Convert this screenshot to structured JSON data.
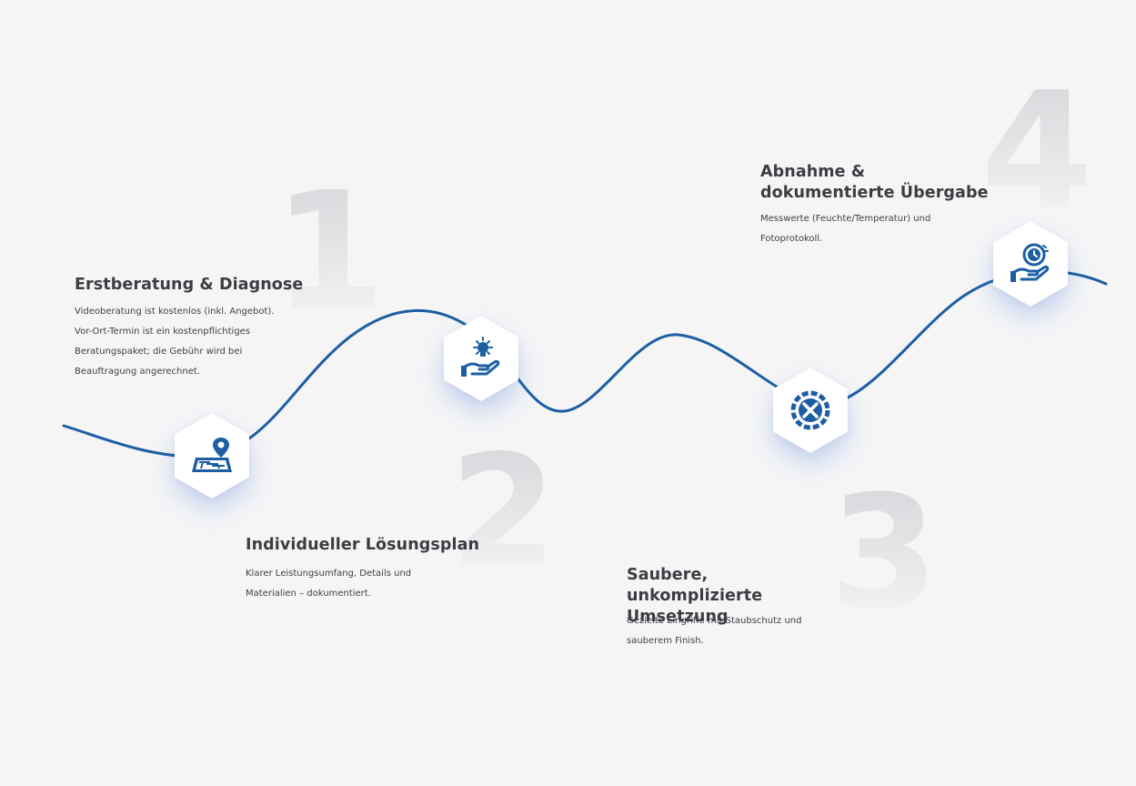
{
  "colors": {
    "background": "#f5f5f6",
    "accent": "#1d5ea3",
    "text": "#3b3d42",
    "number": "#dcdde0"
  },
  "steps": [
    {
      "number": "1",
      "title": "Erstberatung & Diagnose",
      "description": "Videoberatung ist kostenlos (inkl. Angebot). Vor-Ort-Termin ist ein kostenpflichtiges Beratungspaket; die Gebühr wird bei Beauftragung angerechnet.",
      "icon": "map-location-icon"
    },
    {
      "number": "2",
      "title": "Individueller Lösungsplan",
      "description": "Klarer Leistungsumfang, Details und Materialien – dokumentiert.",
      "icon": "idea-hand-icon"
    },
    {
      "number": "3",
      "title": "Saubere, unkomplizierte Umsetzung",
      "description": "Gezielte Eingriffe mit Staubschutz und sauberem Finish.",
      "icon": "gear-tools-icon"
    },
    {
      "number": "4",
      "title": "Abnahme & dokumentierte Übergabe",
      "description": "Messwerte (Feuchte/Temperatur) und Fotoprotokoll.",
      "icon": "time-hand-icon"
    }
  ]
}
